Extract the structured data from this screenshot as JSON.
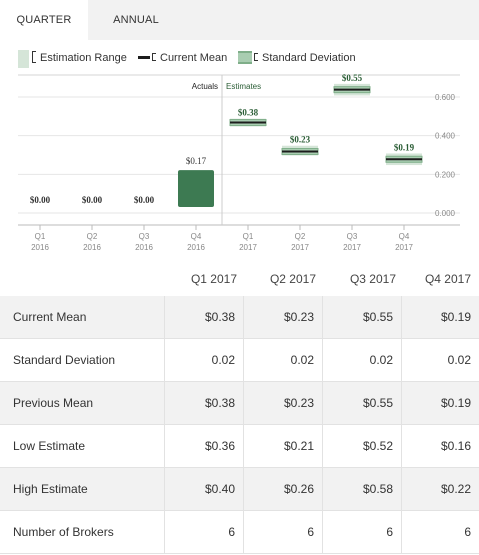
{
  "tabs": [
    "QUARTER",
    "ANNUAL"
  ],
  "active_tab": "QUARTER",
  "legend": {
    "range": "Estimation Range",
    "mean": "Current Mean",
    "std": "Standard Deviation"
  },
  "colors": {
    "actual_bar": "#3d7a52",
    "range_fill": "#d5e5d8",
    "std_fill": "#a9cdb1",
    "std_edge": "#7fae89",
    "mean_line": "#1d1d1d",
    "label_green": "#2a5d35",
    "tab_bg": "#f2f2f2"
  },
  "chart_data": {
    "type": "bar",
    "title": "",
    "xlabel": "",
    "ylabel": "",
    "ylim": [
      0,
      0.7
    ],
    "yticks": [
      "0.600",
      "0.400",
      "0.200",
      "0.000"
    ],
    "section_labels": {
      "actuals": "Actuals",
      "estimates": "Estimates"
    },
    "categories": [
      [
        "Q1",
        "2016"
      ],
      [
        "Q2",
        "2016"
      ],
      [
        "Q3",
        "2016"
      ],
      [
        "Q4",
        "2016"
      ],
      [
        "Q1",
        "2017"
      ],
      [
        "Q2",
        "2017"
      ],
      [
        "Q3",
        "2017"
      ],
      [
        "Q4",
        "2017"
      ]
    ],
    "actuals": [
      {
        "value": 0.0,
        "label": "$0.00"
      },
      {
        "value": 0.0,
        "label": "$0.00"
      },
      {
        "value": 0.0,
        "label": "$0.00"
      },
      {
        "value": 0.17,
        "label": "$0.17"
      }
    ],
    "estimates": [
      {
        "mean": 0.38,
        "label": "$0.38",
        "low": 0.36,
        "high": 0.4,
        "std": 0.02
      },
      {
        "mean": 0.23,
        "label": "$0.23",
        "low": 0.21,
        "high": 0.26,
        "std": 0.02
      },
      {
        "mean": 0.55,
        "label": "$0.55",
        "low": 0.52,
        "high": 0.58,
        "std": 0.02
      },
      {
        "mean": 0.19,
        "label": "$0.19",
        "low": 0.16,
        "high": 0.22,
        "std": 0.02
      }
    ]
  },
  "table": {
    "columns": [
      "Q1 2017",
      "Q2 2017",
      "Q3 2017",
      "Q4 2017"
    ],
    "rows": [
      {
        "label": "Current Mean",
        "values": [
          "$0.38",
          "$0.23",
          "$0.55",
          "$0.19"
        ]
      },
      {
        "label": "Standard Deviation",
        "values": [
          "0.02",
          "0.02",
          "0.02",
          "0.02"
        ]
      },
      {
        "label": "Previous Mean",
        "values": [
          "$0.38",
          "$0.23",
          "$0.55",
          "$0.19"
        ]
      },
      {
        "label": "Low Estimate",
        "values": [
          "$0.36",
          "$0.21",
          "$0.52",
          "$0.16"
        ]
      },
      {
        "label": "High Estimate",
        "values": [
          "$0.40",
          "$0.26",
          "$0.58",
          "$0.22"
        ]
      },
      {
        "label": "Number of Brokers",
        "values": [
          "6",
          "6",
          "6",
          "6"
        ]
      }
    ]
  }
}
